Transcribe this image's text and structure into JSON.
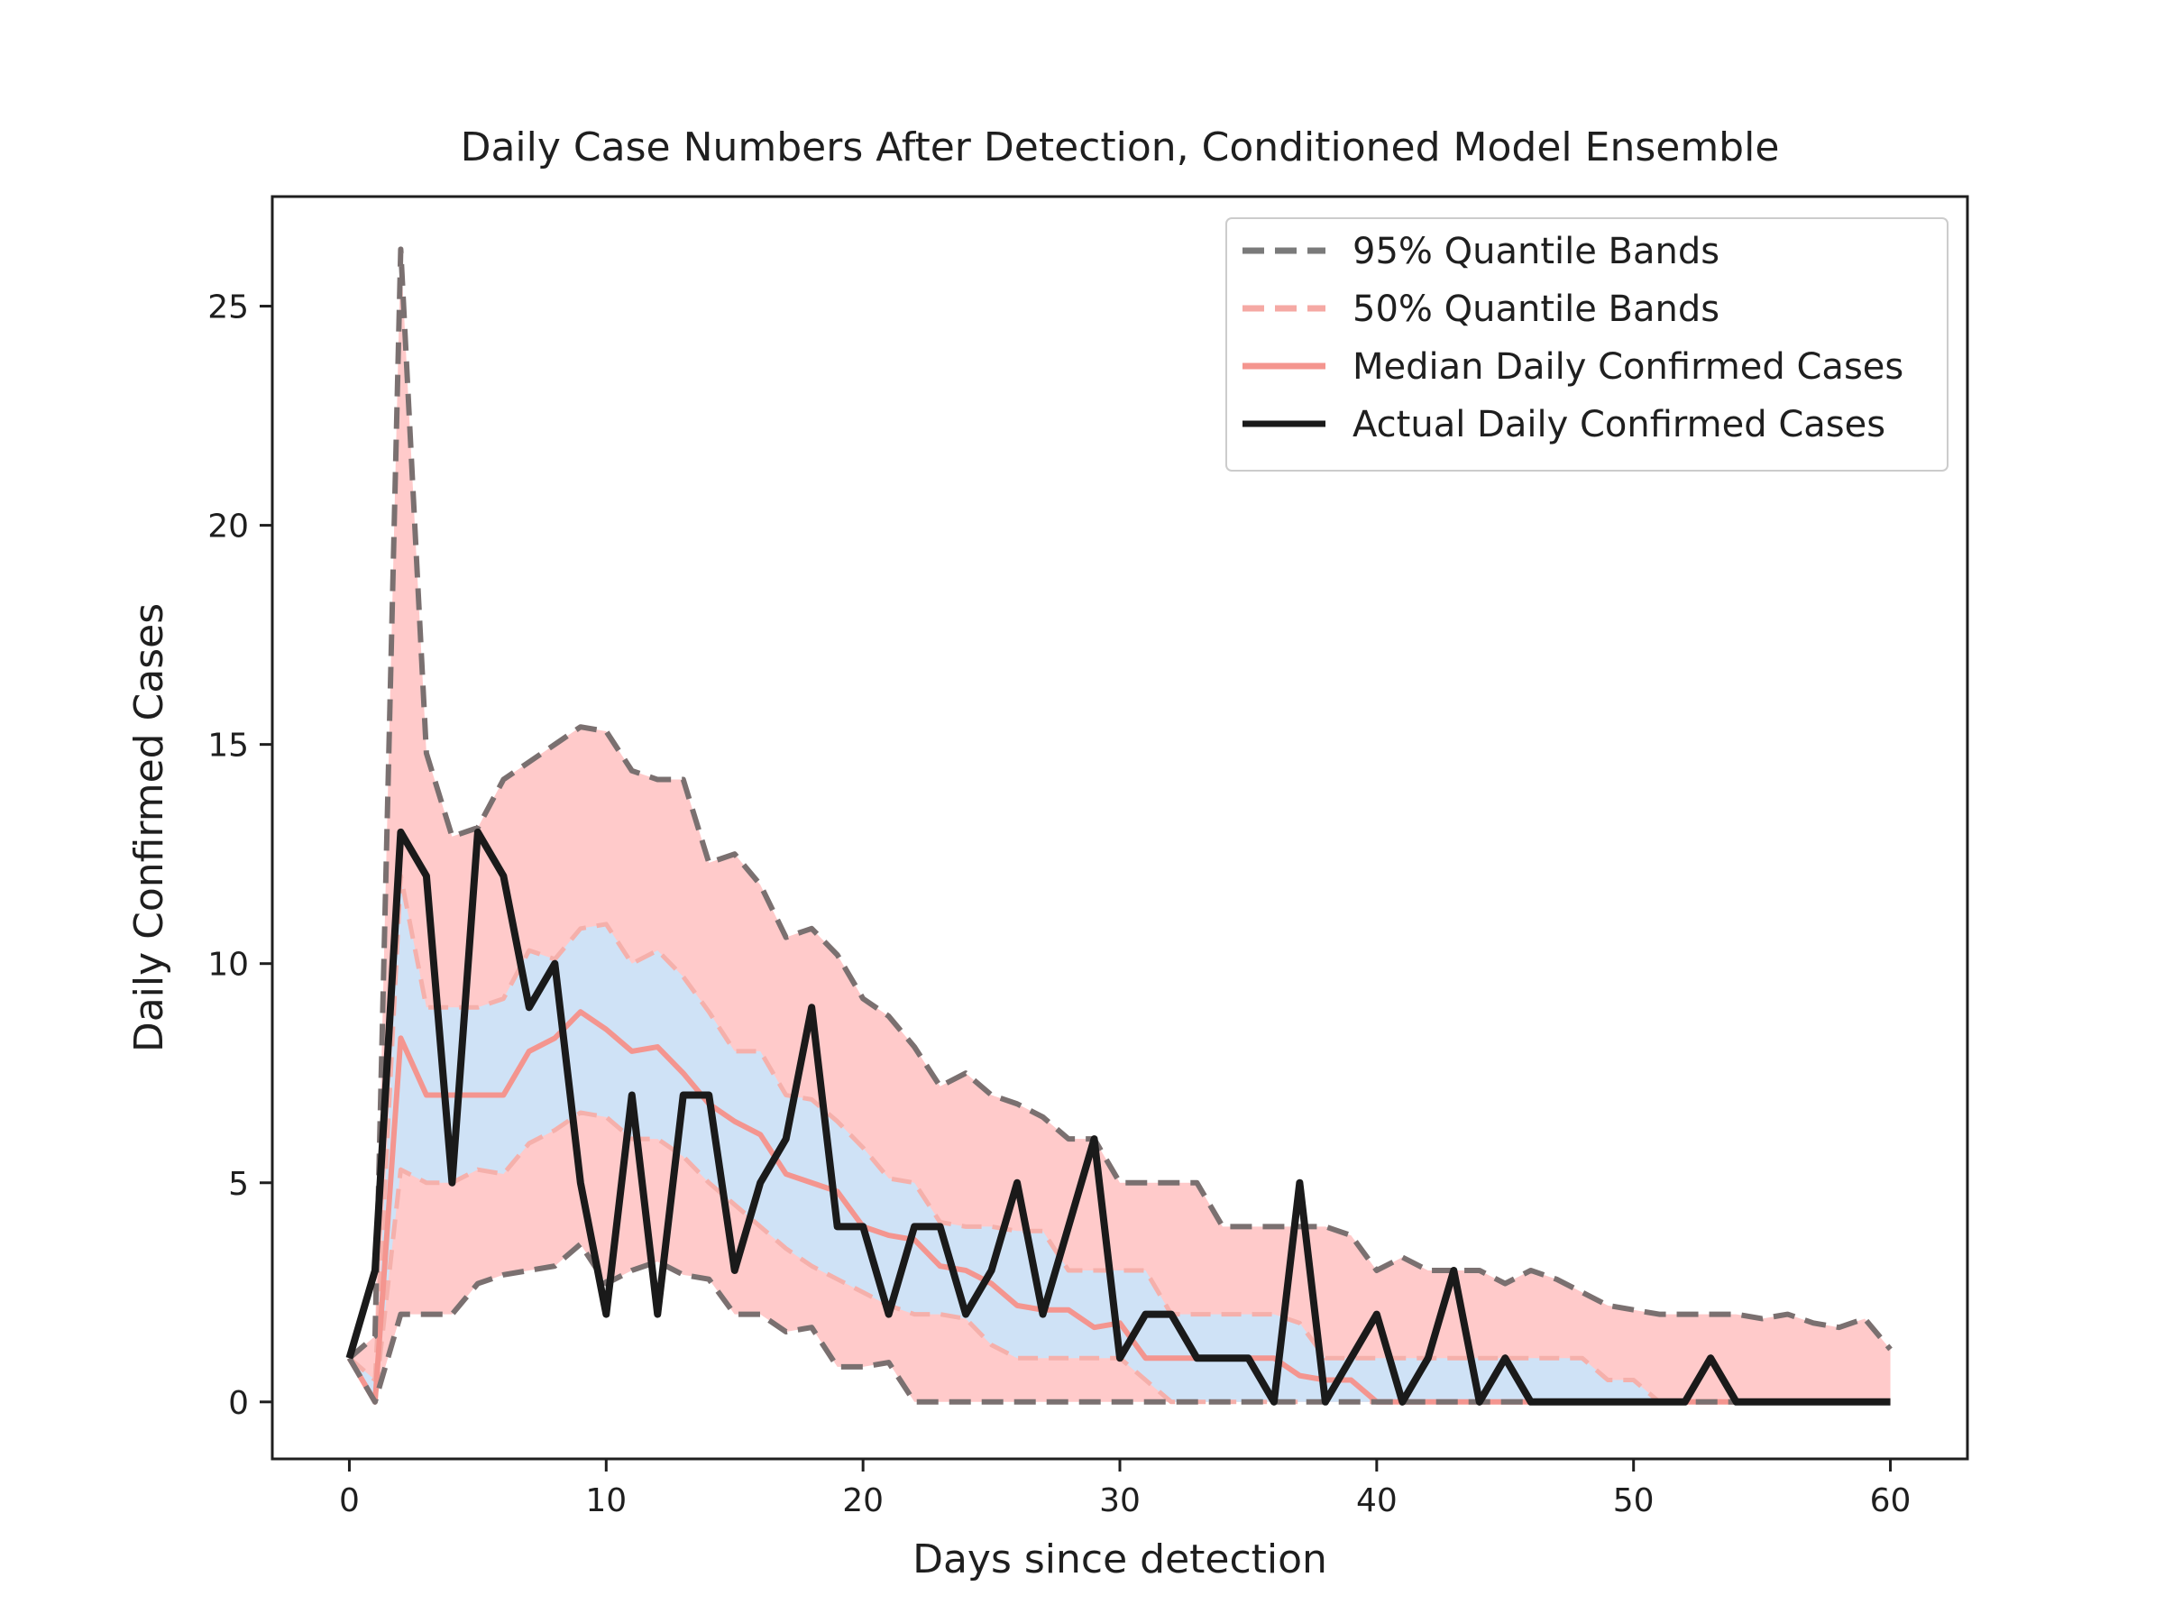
{
  "chart_data": {
    "type": "line",
    "title": "Daily Case Numbers After Detection, Conditioned Model Ensemble",
    "xlabel": "Days since detection",
    "ylabel": "Daily Confirmed Cases",
    "xlim": [
      -3,
      63
    ],
    "ylim": [
      -1.3,
      27.5
    ],
    "xticks": [
      0,
      10,
      20,
      30,
      40,
      50,
      60
    ],
    "yticks": [
      0,
      5,
      10,
      15,
      20,
      25
    ],
    "grid": false,
    "legend_position": "top-right",
    "legend": [
      {
        "label": "95% Quantile Bands",
        "style": "dashed",
        "color": "#7a7a7a"
      },
      {
        "label": "50% Quantile Bands",
        "style": "dashed",
        "color": "#f5a9a4"
      },
      {
        "label": "Median Daily Confirmed Cases",
        "style": "solid",
        "color": "#f4958f"
      },
      {
        "label": "Actual Daily Confirmed Cases",
        "style": "solid",
        "color": "#1a1a1a"
      }
    ],
    "colors": {
      "band95_fill": "#ffcaca",
      "band50_fill": "#cfe2f6",
      "band95_line": "#7a7070",
      "band50_line": "#f5b0ab",
      "median": "#f4958f",
      "actual": "#1a1a1a"
    },
    "x": [
      0,
      1,
      2,
      3,
      4,
      5,
      6,
      7,
      8,
      9,
      10,
      11,
      12,
      13,
      14,
      15,
      16,
      17,
      18,
      19,
      20,
      21,
      22,
      23,
      24,
      25,
      26,
      27,
      28,
      29,
      30,
      31,
      32,
      33,
      34,
      35,
      36,
      37,
      38,
      39,
      40,
      41,
      42,
      43,
      44,
      45,
      46,
      47,
      48,
      49,
      50,
      51,
      52,
      53,
      54,
      55,
      56,
      57,
      58,
      59,
      60
    ],
    "series": [
      {
        "name": "95% Quantile Bands",
        "role": "upper95",
        "values": [
          1,
          1.5,
          26.3,
          14.8,
          12.9,
          13.1,
          14.2,
          14.6,
          15.0,
          15.4,
          15.3,
          14.4,
          14.2,
          14.2,
          12.3,
          12.5,
          11.8,
          10.6,
          10.8,
          10.2,
          9.2,
          8.8,
          8.1,
          7.2,
          7.5,
          7.0,
          6.8,
          6.5,
          6.0,
          6.0,
          5.0,
          5.0,
          5.0,
          5.0,
          4.0,
          4.0,
          4.0,
          4.0,
          4.0,
          3.8,
          3.0,
          3.3,
          3.0,
          3.0,
          3.0,
          2.7,
          3.0,
          2.8,
          2.5,
          2.2,
          2.1,
          2.0,
          2.0,
          2.0,
          2.0,
          1.9,
          2.0,
          1.8,
          1.7,
          1.9,
          1.2
        ]
      },
      {
        "name": "95% Quantile Bands",
        "role": "lower95",
        "values": [
          1,
          0,
          2.0,
          2.0,
          2.0,
          2.7,
          2.9,
          3.0,
          3.1,
          3.6,
          2.7,
          3.0,
          3.2,
          2.9,
          2.8,
          2.0,
          2.0,
          1.6,
          1.7,
          0.8,
          0.8,
          0.9,
          0,
          0,
          0,
          0,
          0,
          0,
          0,
          0,
          0,
          0,
          0,
          0,
          0,
          0,
          0,
          0,
          0,
          0,
          0,
          0,
          0,
          0,
          0,
          0,
          0,
          0,
          0,
          0,
          0,
          0,
          0,
          0,
          0,
          0,
          0,
          0,
          0,
          0,
          0
        ]
      },
      {
        "name": "50% Quantile Bands",
        "role": "upper50",
        "values": [
          1,
          0.5,
          12.0,
          9.0,
          9.0,
          9.0,
          9.2,
          10.3,
          10.1,
          10.8,
          10.9,
          10.0,
          10.3,
          9.7,
          8.9,
          8.0,
          8.0,
          7.0,
          6.9,
          6.4,
          5.8,
          5.1,
          5.0,
          4.1,
          4.0,
          4.0,
          3.9,
          3.9,
          3.0,
          3.0,
          3.0,
          3.0,
          2.0,
          2.0,
          2.0,
          2.0,
          2.0,
          1.8,
          1.0,
          1.0,
          1.0,
          1.0,
          1.0,
          1.0,
          1.0,
          1.0,
          1.0,
          1.0,
          1.0,
          0.5,
          0.5,
          0,
          0,
          0,
          0,
          0,
          0,
          0,
          0,
          0,
          0
        ]
      },
      {
        "name": "50% Quantile Bands",
        "role": "lower50",
        "values": [
          1,
          0,
          5.3,
          5.0,
          5.0,
          5.3,
          5.2,
          5.9,
          6.2,
          6.6,
          6.5,
          6.0,
          6.0,
          5.6,
          5.0,
          4.5,
          4.0,
          3.5,
          3.1,
          2.8,
          2.5,
          2.2,
          2.0,
          2.0,
          1.9,
          1.3,
          1.0,
          1.0,
          1.0,
          1.0,
          1.0,
          0.5,
          0,
          0,
          0,
          0,
          0,
          0,
          0,
          0,
          0,
          0,
          0,
          0,
          0,
          0,
          0,
          0,
          0,
          0,
          0,
          0,
          0,
          0,
          0,
          0,
          0,
          0,
          0,
          0,
          0
        ]
      },
      {
        "name": "Median Daily Confirmed Cases",
        "role": "median",
        "values": [
          1,
          0,
          8.3,
          7.0,
          7.0,
          7.0,
          7.0,
          8.0,
          8.3,
          8.9,
          8.5,
          8.0,
          8.1,
          7.5,
          6.8,
          6.4,
          6.1,
          5.2,
          5.0,
          4.8,
          4.0,
          3.8,
          3.7,
          3.1,
          3.0,
          2.7,
          2.2,
          2.1,
          2.1,
          1.7,
          1.8,
          1.0,
          1.0,
          1.0,
          1.0,
          1.0,
          1.0,
          0.6,
          0.5,
          0.5,
          0,
          0,
          0,
          0,
          0,
          0,
          0,
          0,
          0,
          0,
          0,
          0,
          0,
          0,
          0,
          0,
          0,
          0,
          0,
          0,
          0
        ]
      },
      {
        "name": "Actual Daily Confirmed Cases",
        "role": "actual",
        "values": [
          1,
          3,
          13,
          12,
          5,
          13,
          12,
          9,
          10,
          5,
          2,
          7,
          2,
          7,
          7,
          3,
          5,
          6,
          9,
          4,
          4,
          2,
          4,
          4,
          2,
          3,
          5,
          2,
          4,
          6,
          1,
          2,
          2,
          1,
          1,
          1,
          0,
          5,
          0,
          1,
          2,
          0,
          1,
          3,
          0,
          1,
          0,
          0,
          0,
          0,
          0,
          0,
          0,
          1,
          0,
          0,
          0,
          0,
          0,
          0,
          0
        ]
      }
    ]
  }
}
